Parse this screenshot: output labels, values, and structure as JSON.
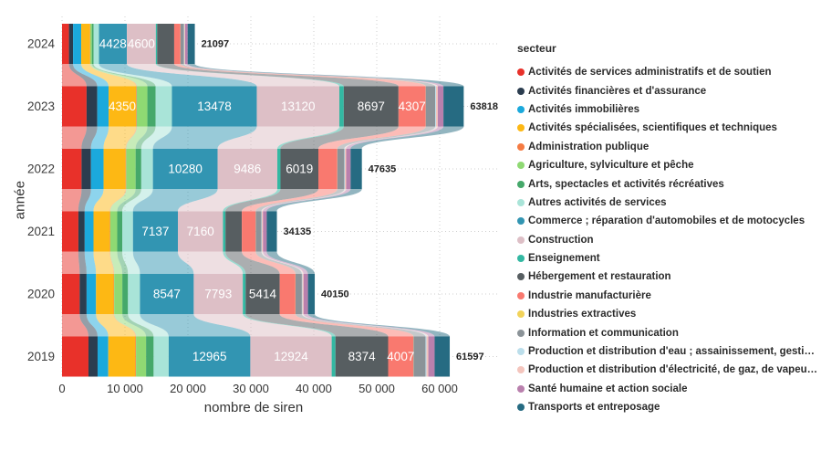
{
  "figure": {
    "legend_title": "secteur",
    "xlabel": "nombre de siren",
    "ylabel": "année"
  },
  "chart_data": {
    "type": "bar",
    "variant": "horizontal-stacked-with-flows",
    "title": "",
    "xlabel": "nombre de siren",
    "ylabel": "année",
    "legend_title": "secteur",
    "legend_position": "right",
    "grid": "dotted",
    "xlim": [
      0,
      65000
    ],
    "x_ticks": {
      "values": [
        0,
        10000,
        20000,
        30000,
        40000,
        50000,
        60000
      ],
      "labels": [
        "0",
        "10 000",
        "20 000",
        "30 000",
        "40 000",
        "50 000",
        "60 000"
      ]
    },
    "years": [
      "2024",
      "2023",
      "2022",
      "2021",
      "2020",
      "2019"
    ],
    "totals": [
      21097,
      63818,
      47635,
      34135,
      40150,
      61597
    ],
    "series": [
      {
        "name": "Activités de services administratifs et de soutien",
        "color": "#e8312a",
        "values": [
          1100,
          3900,
          3100,
          2600,
          2800,
          4200
        ],
        "show_labels": [
          0,
          0,
          0,
          0,
          0,
          0
        ]
      },
      {
        "name": "Activités financières et d'assurance",
        "color": "#2b3d4f",
        "values": [
          650,
          1700,
          1500,
          1000,
          1100,
          1450
        ],
        "show_labels": [
          0,
          0,
          0,
          0,
          0,
          0
        ]
      },
      {
        "name": "Activités immobilières",
        "color": "#1ba9dc",
        "values": [
          1300,
          1800,
          2000,
          1400,
          1500,
          1700
        ],
        "show_labels": [
          0,
          0,
          0,
          0,
          0,
          0
        ]
      },
      {
        "name": "Activités spécialisées, scientifiques et techniques",
        "color": "#fdb814",
        "values": [
          1400,
          4350,
          3500,
          2600,
          2800,
          4300
        ],
        "show_labels": [
          0,
          1,
          0,
          0,
          0,
          0
        ]
      },
      {
        "name": "Administration publique",
        "color": "#f57b42",
        "values": [
          40,
          110,
          90,
          70,
          80,
          100
        ],
        "show_labels": [
          0,
          0,
          0,
          0,
          0,
          0
        ]
      },
      {
        "name": "Agriculture, sylviculture et pêche",
        "color": "#8fd973",
        "values": [
          250,
          1700,
          1500,
          1100,
          1300,
          1600
        ],
        "show_labels": [
          0,
          0,
          0,
          0,
          0,
          0
        ]
      },
      {
        "name": "Arts, spectacles et activités récréatives",
        "color": "#45a86a",
        "values": [
          280,
          1300,
          900,
          800,
          900,
          1200
        ],
        "show_labels": [
          0,
          0,
          0,
          0,
          0,
          0
        ]
      },
      {
        "name": "Autres activités de services",
        "color": "#a9e4d8",
        "values": [
          850,
          2600,
          1850,
          1700,
          1900,
          2400
        ],
        "show_labels": [
          0,
          0,
          0,
          0,
          0,
          0
        ]
      },
      {
        "name": "Commerce ; réparation d'automobiles et de motocycles",
        "color": "#3295b2",
        "values": [
          4428,
          13478,
          10280,
          7137,
          8547,
          12965
        ],
        "show_labels": [
          1,
          1,
          1,
          1,
          1,
          1
        ]
      },
      {
        "name": "Construction",
        "color": "#ddbfc6",
        "values": [
          4600,
          13120,
          9486,
          7160,
          7793,
          12924
        ],
        "show_labels": [
          1,
          1,
          1,
          1,
          1,
          1
        ]
      },
      {
        "name": "Enseignement",
        "color": "#33b8a2",
        "values": [
          220,
          700,
          500,
          400,
          450,
          600
        ],
        "show_labels": [
          0,
          0,
          0,
          0,
          0,
          0
        ]
      },
      {
        "name": "Hébergement et restauration",
        "color": "#575e61",
        "values": [
          2700,
          8697,
          6019,
          2600,
          5414,
          8374
        ],
        "show_labels": [
          0,
          1,
          1,
          0,
          1,
          1
        ]
      },
      {
        "name": "Industrie manufacturière",
        "color": "#f9796f",
        "values": [
          1000,
          4307,
          3000,
          2200,
          2500,
          4007
        ],
        "show_labels": [
          0,
          1,
          0,
          0,
          0,
          1
        ]
      },
      {
        "name": "Industries extractives",
        "color": "#f2d35a",
        "values": [
          10,
          25,
          20,
          15,
          20,
          27
        ],
        "show_labels": [
          0,
          0,
          0,
          0,
          0,
          0
        ]
      },
      {
        "name": "Information et communication",
        "color": "#8b9398",
        "values": [
          550,
          1500,
          1100,
          900,
          1000,
          1900
        ],
        "show_labels": [
          0,
          0,
          0,
          0,
          0,
          0
        ]
      },
      {
        "name": "Production et distribution d'eau ; assainissement, gestion...",
        "color": "#bbdeeb",
        "values": [
          60,
          130,
          100,
          80,
          90,
          150
        ],
        "show_labels": [
          0,
          0,
          0,
          0,
          0,
          0
        ]
      },
      {
        "name": "Production et distribution d'électricité, de gaz, de vapeur ...",
        "color": "#f4c5bd",
        "values": [
          120,
          280,
          200,
          160,
          180,
          300
        ],
        "show_labels": [
          0,
          0,
          0,
          0,
          0,
          0
        ]
      },
      {
        "name": "Santé humaine et action sociale",
        "color": "#b980ad",
        "values": [
          400,
          900,
          700,
          600,
          700,
          1000
        ],
        "show_labels": [
          0,
          0,
          0,
          0,
          0,
          0
        ]
      },
      {
        "name": "Transports et entreposage",
        "color": "#266b82",
        "values": [
          1139,
          3221,
          1790,
          1613,
          1076,
          2400
        ],
        "show_labels": [
          0,
          0,
          0,
          0,
          0,
          0
        ]
      }
    ]
  }
}
